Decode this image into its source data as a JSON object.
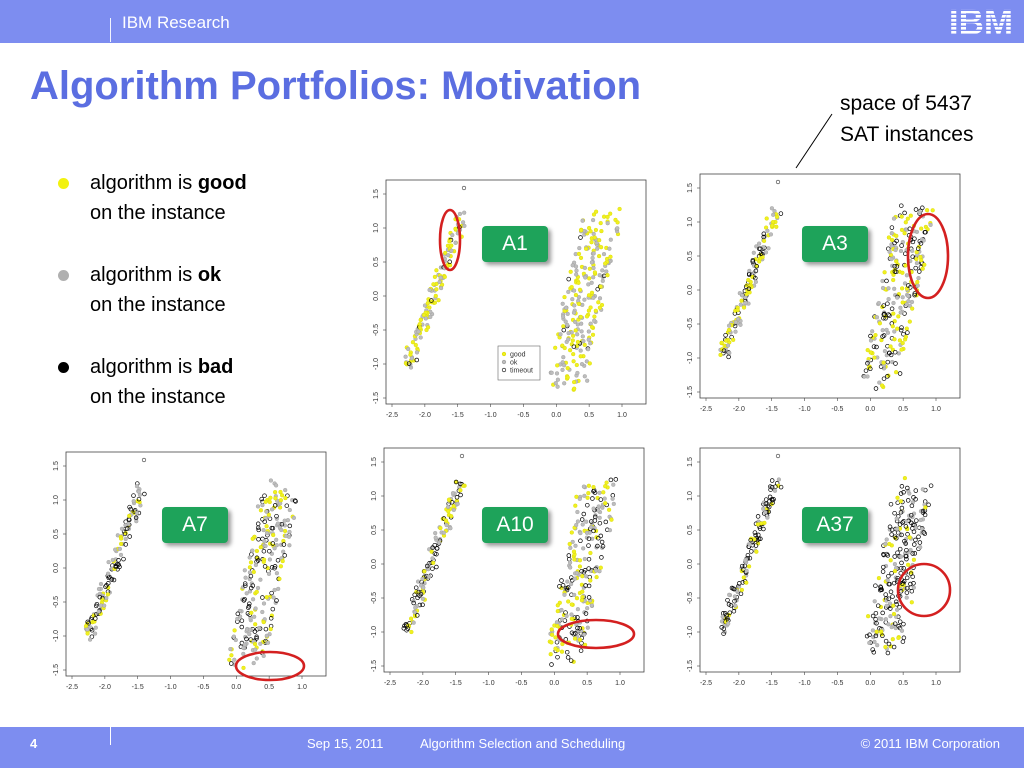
{
  "header": {
    "brand": "IBM Research",
    "logo": "IBM"
  },
  "title": "Algorithm Portfolios: Motivation",
  "annotation": {
    "line1": "space of 5437",
    "line2": "SAT instances"
  },
  "bullets": [
    {
      "prefix": "algorithm is ",
      "bold": "good",
      "line2": "on the instance",
      "color": "#f2f20f"
    },
    {
      "prefix": "algorithm is ",
      "bold": "ok",
      "line2": "on the instance",
      "color": "#b0b0b0"
    },
    {
      "prefix": "algorithm is ",
      "bold": "bad",
      "line2": "on the instance",
      "color": "#000000"
    }
  ],
  "axes": {
    "x_ticks": [
      "-2.5",
      "-2.0",
      "-1.5",
      "-1.0",
      "-0.5",
      "0.0",
      "0.5",
      "1.0"
    ],
    "y_ticks": [
      "-1.5",
      "-1.0",
      "-0.5",
      "0.0",
      "0.5",
      "1.0",
      "1.5"
    ]
  },
  "legend": [
    "good",
    "ok",
    "timeout"
  ],
  "panels": [
    {
      "label": "A1"
    },
    {
      "label": "A3"
    },
    {
      "label": "A7"
    },
    {
      "label": "A10"
    },
    {
      "label": "A37"
    }
  ],
  "colors": {
    "bar": "#7d8df0",
    "title": "#5b6ee1",
    "badge": "#1ea35a",
    "circle": "#d42020"
  },
  "footer": {
    "page": "4",
    "date": "Sep 15, 2011",
    "talk": "Algorithm Selection and Scheduling",
    "copyright": "© 2011 IBM Corporation"
  }
}
